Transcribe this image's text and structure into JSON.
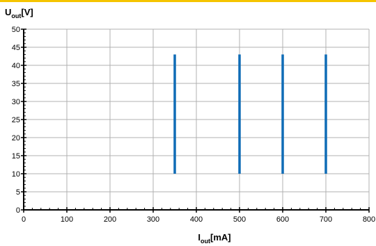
{
  "chart_data": {
    "type": "line",
    "title": "",
    "ylabel": {
      "main": "U",
      "sub": "out",
      "unit": "[V]"
    },
    "xlabel": {
      "main": "I",
      "sub": "out",
      "unit": "[mA]"
    },
    "xlim": [
      0,
      800
    ],
    "ylim": [
      0,
      50
    ],
    "x_ticks": [
      0,
      100,
      200,
      300,
      400,
      500,
      600,
      700,
      800
    ],
    "y_ticks": [
      0,
      5,
      10,
      15,
      20,
      25,
      30,
      35,
      40,
      45,
      50
    ],
    "grid": true,
    "series": [
      {
        "x": [
          350,
          350
        ],
        "y": [
          10,
          43
        ]
      },
      {
        "x": [
          500,
          500
        ],
        "y": [
          10,
          43
        ]
      },
      {
        "x": [
          600,
          600
        ],
        "y": [
          10,
          43
        ]
      },
      {
        "x": [
          700,
          700
        ],
        "y": [
          10,
          43
        ]
      }
    ],
    "colors": {
      "series": "#0f6cb6",
      "grid": "#b0b0b0",
      "axis": "#000000",
      "top_bar": "#f5c400"
    }
  }
}
